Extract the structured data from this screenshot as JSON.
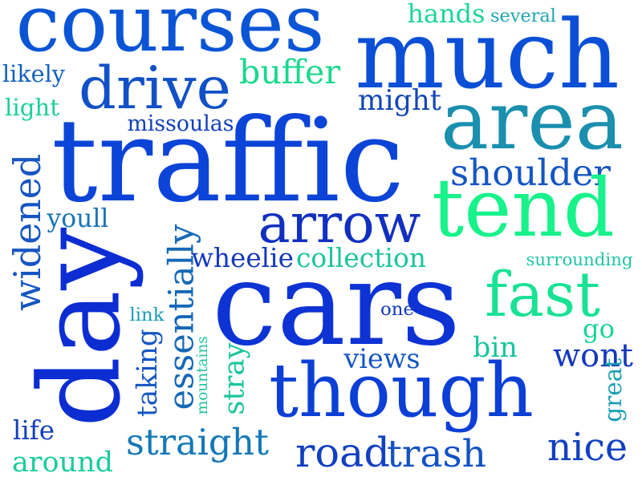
{
  "words": [
    {
      "text": "courses",
      "color": "#0a55d6"
    },
    {
      "text": "much",
      "color": "#0b4fd6"
    },
    {
      "text": "drive",
      "color": "#1150c8"
    },
    {
      "text": "traffic",
      "color": "#0c44d8"
    },
    {
      "text": "area",
      "color": "#1a8fae"
    },
    {
      "text": "buffer",
      "color": "#18d98e"
    },
    {
      "text": "hands",
      "color": "#1dd694"
    },
    {
      "text": "several",
      "color": "#1da5b0"
    },
    {
      "text": "likely",
      "color": "#1360c2"
    },
    {
      "text": "light",
      "color": "#1ccf9a"
    },
    {
      "text": "missoulas",
      "color": "#1240b8"
    },
    {
      "text": "might",
      "color": "#1248b6"
    },
    {
      "text": "shoulder",
      "color": "#1456c2"
    },
    {
      "text": "tend",
      "color": "#17f28a"
    },
    {
      "text": "arrow",
      "color": "#1230c0"
    },
    {
      "text": "youll",
      "color": "#1675b6"
    },
    {
      "text": "widened",
      "color": "#1656c2"
    },
    {
      "text": "day",
      "color": "#0c2dd2"
    },
    {
      "text": "essentially",
      "color": "#1568b8"
    },
    {
      "text": "wheelie",
      "color": "#1438be"
    },
    {
      "text": "collection",
      "color": "#1bc59c"
    },
    {
      "text": "surrounding",
      "color": "#1fc6a4"
    },
    {
      "text": "fast",
      "color": "#19e294"
    },
    {
      "text": "cars",
      "color": "#0d33d4"
    },
    {
      "text": "link",
      "color": "#189bb4"
    },
    {
      "text": "one",
      "color": "#1438be"
    },
    {
      "text": "go",
      "color": "#19d496"
    },
    {
      "text": "bin",
      "color": "#1bc59c"
    },
    {
      "text": "wont",
      "color": "#1438be"
    },
    {
      "text": "taking",
      "color": "#1456c2"
    },
    {
      "text": "mountains",
      "color": "#1bc59c"
    },
    {
      "text": "stray",
      "color": "#1bc59c"
    },
    {
      "text": "views",
      "color": "#1456c2"
    },
    {
      "text": "though",
      "color": "#0c3fd6"
    },
    {
      "text": "great",
      "color": "#1a9db2"
    },
    {
      "text": "life",
      "color": "#1440be"
    },
    {
      "text": "around",
      "color": "#18cc9c"
    },
    {
      "text": "straight",
      "color": "#1478b8"
    },
    {
      "text": "road",
      "color": "#1240c0"
    },
    {
      "text": "trash",
      "color": "#1252c4"
    },
    {
      "text": "nice",
      "color": "#1240c0"
    }
  ]
}
